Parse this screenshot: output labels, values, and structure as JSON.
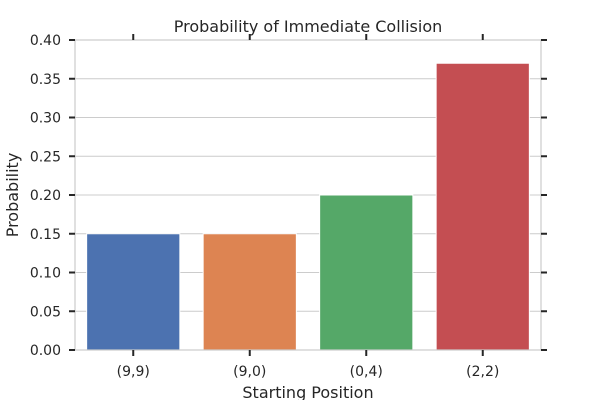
{
  "chart_data": {
    "type": "bar",
    "title": "Probability of Immediate Collision",
    "xlabel": "Starting Position",
    "ylabel": "Probability",
    "categories": [
      "(9,9)",
      "(9,0)",
      "(0,4)",
      "(2,2)"
    ],
    "values": [
      0.15,
      0.15,
      0.2,
      0.37
    ],
    "colors": [
      "#4c72b0",
      "#dd8452",
      "#55a868",
      "#c44e52"
    ],
    "ylim": [
      0,
      0.4
    ],
    "yticks": [
      "0.00",
      "0.05",
      "0.10",
      "0.15",
      "0.20",
      "0.25",
      "0.30",
      "0.35",
      "0.40"
    ],
    "grid": true
  }
}
